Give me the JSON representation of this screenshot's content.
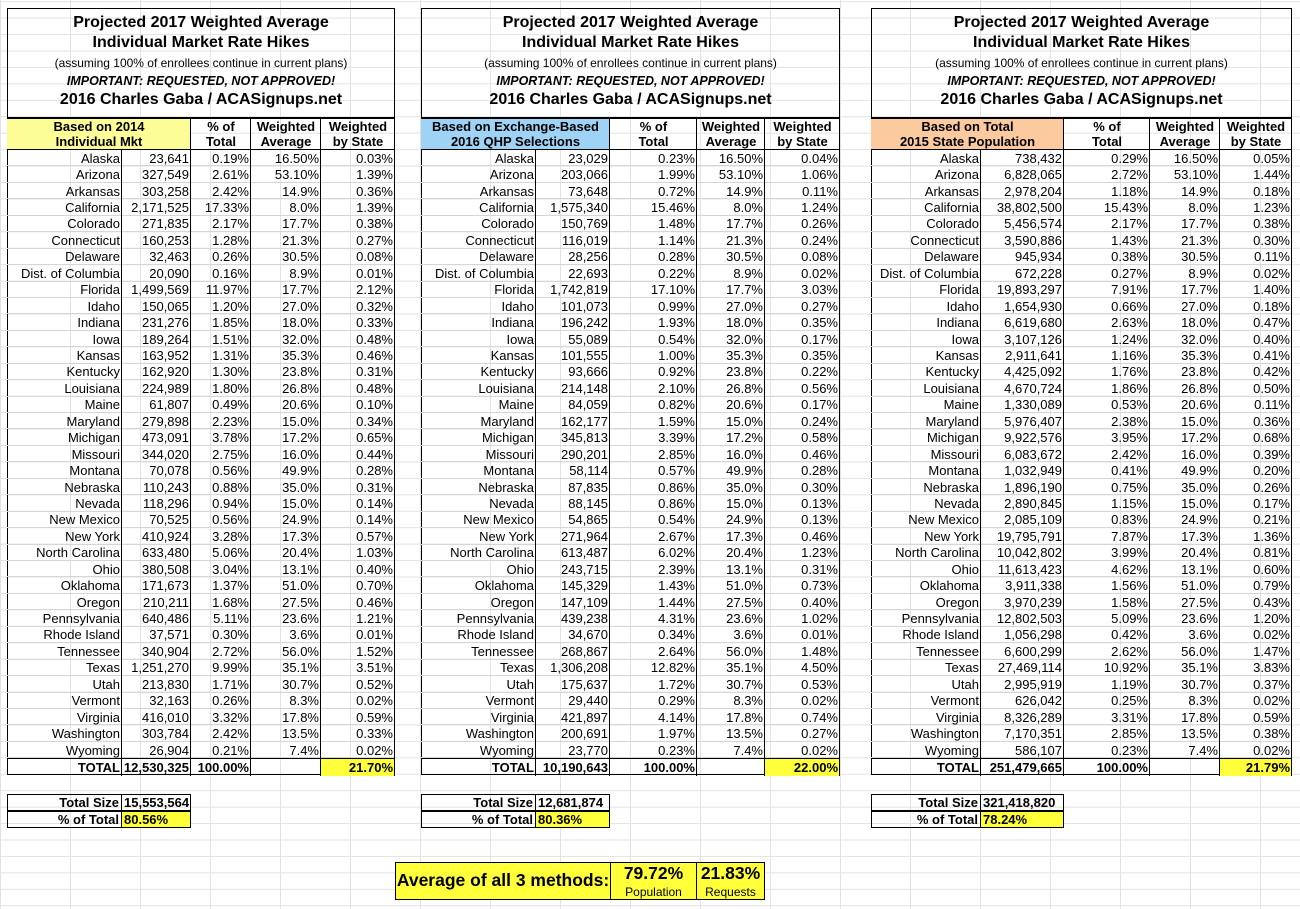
{
  "tables": [
    {
      "header": {
        "title_lines": [
          "Projected 2017 Weighted Average",
          "Individual Market Rate Hikes"
        ],
        "note": "(assuming 100% of enrollees continue in current plans)",
        "warning": "IMPORTANT: REQUESTED, NOT APPROVED!",
        "credit": "2016 Charles Gaba / ACASignups.net"
      },
      "color": "#fdfd98",
      "columns": [
        "Based on 2014\nIndividual Mkt",
        "% of\nTotal",
        "Weighted\nAverage",
        "Weighted\nby State"
      ],
      "rows": [
        [
          "Alaska",
          "23,641",
          "0.19%",
          "16.50%",
          "0.03%"
        ],
        [
          "Arizona",
          "327,549",
          "2.61%",
          "53.10%",
          "1.39%"
        ],
        [
          "Arkansas",
          "303,258",
          "2.42%",
          "14.9%",
          "0.36%"
        ],
        [
          "California",
          "2,171,525",
          "17.33%",
          "8.0%",
          "1.39%"
        ],
        [
          "Colorado",
          "271,835",
          "2.17%",
          "17.7%",
          "0.38%"
        ],
        [
          "Connecticut",
          "160,253",
          "1.28%",
          "21.3%",
          "0.27%"
        ],
        [
          "Delaware",
          "32,463",
          "0.26%",
          "30.5%",
          "0.08%"
        ],
        [
          "Dist. of Columbia",
          "20,090",
          "0.16%",
          "8.9%",
          "0.01%"
        ],
        [
          "Florida",
          "1,499,569",
          "11.97%",
          "17.7%",
          "2.12%"
        ],
        [
          "Idaho",
          "150,065",
          "1.20%",
          "27.0%",
          "0.32%"
        ],
        [
          "Indiana",
          "231,276",
          "1.85%",
          "18.0%",
          "0.33%"
        ],
        [
          "Iowa",
          "189,264",
          "1.51%",
          "32.0%",
          "0.48%"
        ],
        [
          "Kansas",
          "163,952",
          "1.31%",
          "35.3%",
          "0.46%"
        ],
        [
          "Kentucky",
          "162,920",
          "1.30%",
          "23.8%",
          "0.31%"
        ],
        [
          "Louisiana",
          "224,989",
          "1.80%",
          "26.8%",
          "0.48%"
        ],
        [
          "Maine",
          "61,807",
          "0.49%",
          "20.6%",
          "0.10%"
        ],
        [
          "Maryland",
          "279,898",
          "2.23%",
          "15.0%",
          "0.34%"
        ],
        [
          "Michigan",
          "473,091",
          "3.78%",
          "17.2%",
          "0.65%"
        ],
        [
          "Missouri",
          "344,020",
          "2.75%",
          "16.0%",
          "0.44%"
        ],
        [
          "Montana",
          "70,078",
          "0.56%",
          "49.9%",
          "0.28%"
        ],
        [
          "Nebraska",
          "110,243",
          "0.88%",
          "35.0%",
          "0.31%"
        ],
        [
          "Nevada",
          "118,296",
          "0.94%",
          "15.0%",
          "0.14%"
        ],
        [
          "New Mexico",
          "70,525",
          "0.56%",
          "24.9%",
          "0.14%"
        ],
        [
          "New York",
          "410,924",
          "3.28%",
          "17.3%",
          "0.57%"
        ],
        [
          "North Carolina",
          "633,480",
          "5.06%",
          "20.4%",
          "1.03%"
        ],
        [
          "Ohio",
          "380,508",
          "3.04%",
          "13.1%",
          "0.40%"
        ],
        [
          "Oklahoma",
          "171,673",
          "1.37%",
          "51.0%",
          "0.70%"
        ],
        [
          "Oregon",
          "210,211",
          "1.68%",
          "27.5%",
          "0.46%"
        ],
        [
          "Pennsylvania",
          "640,486",
          "5.11%",
          "23.6%",
          "1.21%"
        ],
        [
          "Rhode Island",
          "37,571",
          "0.30%",
          "3.6%",
          "0.01%"
        ],
        [
          "Tennessee",
          "340,904",
          "2.72%",
          "56.0%",
          "1.52%"
        ],
        [
          "Texas",
          "1,251,270",
          "9.99%",
          "35.1%",
          "3.51%"
        ],
        [
          "Utah",
          "213,830",
          "1.71%",
          "30.7%",
          "0.52%"
        ],
        [
          "Vermont",
          "32,163",
          "0.26%",
          "8.3%",
          "0.02%"
        ],
        [
          "Virginia",
          "416,010",
          "3.32%",
          "17.8%",
          "0.59%"
        ],
        [
          "Washington",
          "303,784",
          "2.42%",
          "13.5%",
          "0.33%"
        ],
        [
          "Wyoming",
          "26,904",
          "0.21%",
          "7.4%",
          "0.02%"
        ]
      ],
      "total": [
        "TOTAL",
        "12,530,325",
        "100.00%",
        "21.70%"
      ],
      "summary": [
        [
          "Total Size",
          "15,553,564"
        ],
        [
          "% of Total",
          "80.56%"
        ]
      ]
    },
    {
      "header": {
        "title_lines": [
          "Projected 2017 Weighted Average",
          "Individual Market Rate Hikes"
        ],
        "note": "(assuming 100% of enrollees continue in current plans)",
        "warning": "IMPORTANT: REQUESTED, NOT APPROVED!",
        "credit": "2016 Charles Gaba / ACASignups.net"
      },
      "color": "#9fd3f6",
      "columns": [
        "Based on Exchange-Based\n2016 QHP Selections",
        "% of\nTotal",
        "Weighted\nAverage",
        "Weighted\nby State"
      ],
      "rows": [
        [
          "Alaska",
          "23,029",
          "0.23%",
          "16.50%",
          "0.04%"
        ],
        [
          "Arizona",
          "203,066",
          "1.99%",
          "53.10%",
          "1.06%"
        ],
        [
          "Arkansas",
          "73,648",
          "0.72%",
          "14.9%",
          "0.11%"
        ],
        [
          "California",
          "1,575,340",
          "15.46%",
          "8.0%",
          "1.24%"
        ],
        [
          "Colorado",
          "150,769",
          "1.48%",
          "17.7%",
          "0.26%"
        ],
        [
          "Connecticut",
          "116,019",
          "1.14%",
          "21.3%",
          "0.24%"
        ],
        [
          "Delaware",
          "28,256",
          "0.28%",
          "30.5%",
          "0.08%"
        ],
        [
          "Dist. of Columbia",
          "22,693",
          "0.22%",
          "8.9%",
          "0.02%"
        ],
        [
          "Florida",
          "1,742,819",
          "17.10%",
          "17.7%",
          "3.03%"
        ],
        [
          "Idaho",
          "101,073",
          "0.99%",
          "27.0%",
          "0.27%"
        ],
        [
          "Indiana",
          "196,242",
          "1.93%",
          "18.0%",
          "0.35%"
        ],
        [
          "Iowa",
          "55,089",
          "0.54%",
          "32.0%",
          "0.17%"
        ],
        [
          "Kansas",
          "101,555",
          "1.00%",
          "35.3%",
          "0.35%"
        ],
        [
          "Kentucky",
          "93,666",
          "0.92%",
          "23.8%",
          "0.22%"
        ],
        [
          "Louisiana",
          "214,148",
          "2.10%",
          "26.8%",
          "0.56%"
        ],
        [
          "Maine",
          "84,059",
          "0.82%",
          "20.6%",
          "0.17%"
        ],
        [
          "Maryland",
          "162,177",
          "1.59%",
          "15.0%",
          "0.24%"
        ],
        [
          "Michigan",
          "345,813",
          "3.39%",
          "17.2%",
          "0.58%"
        ],
        [
          "Missouri",
          "290,201",
          "2.85%",
          "16.0%",
          "0.46%"
        ],
        [
          "Montana",
          "58,114",
          "0.57%",
          "49.9%",
          "0.28%"
        ],
        [
          "Nebraska",
          "87,835",
          "0.86%",
          "35.0%",
          "0.30%"
        ],
        [
          "Nevada",
          "88,145",
          "0.86%",
          "15.0%",
          "0.13%"
        ],
        [
          "New Mexico",
          "54,865",
          "0.54%",
          "24.9%",
          "0.13%"
        ],
        [
          "New York",
          "271,964",
          "2.67%",
          "17.3%",
          "0.46%"
        ],
        [
          "North Carolina",
          "613,487",
          "6.02%",
          "20.4%",
          "1.23%"
        ],
        [
          "Ohio",
          "243,715",
          "2.39%",
          "13.1%",
          "0.31%"
        ],
        [
          "Oklahoma",
          "145,329",
          "1.43%",
          "51.0%",
          "0.73%"
        ],
        [
          "Oregon",
          "147,109",
          "1.44%",
          "27.5%",
          "0.40%"
        ],
        [
          "Pennsylvania",
          "439,238",
          "4.31%",
          "23.6%",
          "1.02%"
        ],
        [
          "Rhode Island",
          "34,670",
          "0.34%",
          "3.6%",
          "0.01%"
        ],
        [
          "Tennessee",
          "268,867",
          "2.64%",
          "56.0%",
          "1.48%"
        ],
        [
          "Texas",
          "1,306,208",
          "12.82%",
          "35.1%",
          "4.50%"
        ],
        [
          "Utah",
          "175,637",
          "1.72%",
          "30.7%",
          "0.53%"
        ],
        [
          "Vermont",
          "29,440",
          "0.29%",
          "8.3%",
          "0.02%"
        ],
        [
          "Virginia",
          "421,897",
          "4.14%",
          "17.8%",
          "0.74%"
        ],
        [
          "Washington",
          "200,691",
          "1.97%",
          "13.5%",
          "0.27%"
        ],
        [
          "Wyoming",
          "23,770",
          "0.23%",
          "7.4%",
          "0.02%"
        ]
      ],
      "total": [
        "TOTAL",
        "10,190,643",
        "100.00%",
        "22.00%"
      ],
      "summary": [
        [
          "Total Size",
          "12,681,874"
        ],
        [
          "% of Total",
          "80.36%"
        ]
      ]
    },
    {
      "header": {
        "title_lines": [
          "Projected 2017 Weighted Average",
          "Individual Market Rate Hikes"
        ],
        "note": "(assuming 100% of enrollees continue in current plans)",
        "warning": "IMPORTANT: REQUESTED, NOT APPROVED!",
        "credit": "2016 Charles Gaba / ACASignups.net"
      },
      "color": "#fbca9f",
      "columns": [
        "Based on Total\n2015 State Population",
        "% of\nTotal",
        "Weighted\nAverage",
        "Weighted\nby State"
      ],
      "rows": [
        [
          "Alaska",
          "738,432",
          "0.29%",
          "16.50%",
          "0.05%"
        ],
        [
          "Arizona",
          "6,828,065",
          "2.72%",
          "53.10%",
          "1.44%"
        ],
        [
          "Arkansas",
          "2,978,204",
          "1.18%",
          "14.9%",
          "0.18%"
        ],
        [
          "California",
          "38,802,500",
          "15.43%",
          "8.0%",
          "1.23%"
        ],
        [
          "Colorado",
          "5,456,574",
          "2.17%",
          "17.7%",
          "0.38%"
        ],
        [
          "Connecticut",
          "3,590,886",
          "1.43%",
          "21.3%",
          "0.30%"
        ],
        [
          "Delaware",
          "945,934",
          "0.38%",
          "30.5%",
          "0.11%"
        ],
        [
          "Dist. of Columbia",
          "672,228",
          "0.27%",
          "8.9%",
          "0.02%"
        ],
        [
          "Florida",
          "19,893,297",
          "7.91%",
          "17.7%",
          "1.40%"
        ],
        [
          "Idaho",
          "1,654,930",
          "0.66%",
          "27.0%",
          "0.18%"
        ],
        [
          "Indiana",
          "6,619,680",
          "2.63%",
          "18.0%",
          "0.47%"
        ],
        [
          "Iowa",
          "3,107,126",
          "1.24%",
          "32.0%",
          "0.40%"
        ],
        [
          "Kansas",
          "2,911,641",
          "1.16%",
          "35.3%",
          "0.41%"
        ],
        [
          "Kentucky",
          "4,425,092",
          "1.76%",
          "23.8%",
          "0.42%"
        ],
        [
          "Louisiana",
          "4,670,724",
          "1.86%",
          "26.8%",
          "0.50%"
        ],
        [
          "Maine",
          "1,330,089",
          "0.53%",
          "20.6%",
          "0.11%"
        ],
        [
          "Maryland",
          "5,976,407",
          "2.38%",
          "15.0%",
          "0.36%"
        ],
        [
          "Michigan",
          "9,922,576",
          "3.95%",
          "17.2%",
          "0.68%"
        ],
        [
          "Missouri",
          "6,083,672",
          "2.42%",
          "16.0%",
          "0.39%"
        ],
        [
          "Montana",
          "1,032,949",
          "0.41%",
          "49.9%",
          "0.20%"
        ],
        [
          "Nebraska",
          "1,896,190",
          "0.75%",
          "35.0%",
          "0.26%"
        ],
        [
          "Nevada",
          "2,890,845",
          "1.15%",
          "15.0%",
          "0.17%"
        ],
        [
          "New Mexico",
          "2,085,109",
          "0.83%",
          "24.9%",
          "0.21%"
        ],
        [
          "New York",
          "19,795,791",
          "7.87%",
          "17.3%",
          "1.36%"
        ],
        [
          "North Carolina",
          "10,042,802",
          "3.99%",
          "20.4%",
          "0.81%"
        ],
        [
          "Ohio",
          "11,613,423",
          "4.62%",
          "13.1%",
          "0.60%"
        ],
        [
          "Oklahoma",
          "3,911,338",
          "1.56%",
          "51.0%",
          "0.79%"
        ],
        [
          "Oregon",
          "3,970,239",
          "1.58%",
          "27.5%",
          "0.43%"
        ],
        [
          "Pennsylvania",
          "12,802,503",
          "5.09%",
          "23.6%",
          "1.20%"
        ],
        [
          "Rhode Island",
          "1,056,298",
          "0.42%",
          "3.6%",
          "0.02%"
        ],
        [
          "Tennessee",
          "6,600,299",
          "2.62%",
          "56.0%",
          "1.47%"
        ],
        [
          "Texas",
          "27,469,114",
          "10.92%",
          "35.1%",
          "3.83%"
        ],
        [
          "Utah",
          "2,995,919",
          "1.19%",
          "30.7%",
          "0.37%"
        ],
        [
          "Vermont",
          "626,042",
          "0.25%",
          "8.3%",
          "0.02%"
        ],
        [
          "Virginia",
          "8,326,289",
          "3.31%",
          "17.8%",
          "0.59%"
        ],
        [
          "Washington",
          "7,170,351",
          "2.85%",
          "13.5%",
          "0.38%"
        ],
        [
          "Wyoming",
          "586,107",
          "0.23%",
          "7.4%",
          "0.02%"
        ]
      ],
      "total": [
        "TOTAL",
        "251,479,665",
        "100.00%",
        "21.79%"
      ],
      "summary": [
        [
          "Total Size",
          "321,418,820"
        ],
        [
          "% of Total",
          "78.24%"
        ]
      ]
    }
  ],
  "average": {
    "label": "Average of all 3 methods:",
    "population": "79.72%",
    "population_label": "Population",
    "requests": "21.83%",
    "requests_label": "Requests"
  }
}
